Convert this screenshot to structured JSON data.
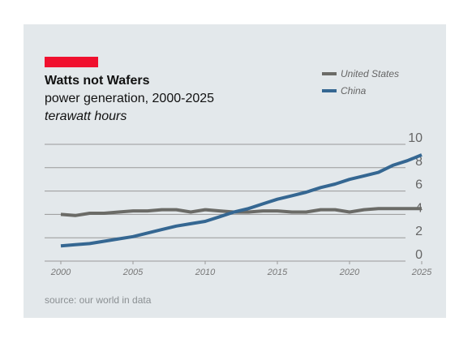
{
  "header": {
    "title": "Watts not Wafers",
    "subtitle": "power generation, 2000-2025",
    "unit": "terawatt hours"
  },
  "footer": {
    "source": "source: our world in data"
  },
  "colors": {
    "accent": "#f0102e",
    "us": "#6b6b67",
    "china": "#356792",
    "grid": "#999999"
  },
  "chart_data": {
    "type": "line",
    "title": "Watts not Wafers",
    "subtitle": "power generation, 2000-2025",
    "ylabel": "terawatt hours",
    "x": [
      2000,
      2001,
      2002,
      2003,
      2004,
      2005,
      2006,
      2007,
      2008,
      2009,
      2010,
      2011,
      2012,
      2013,
      2014,
      2015,
      2016,
      2017,
      2018,
      2019,
      2020,
      2021,
      2022,
      2023,
      2024,
      2025
    ],
    "series": [
      {
        "name": "United States",
        "values": [
          4.0,
          3.9,
          4.1,
          4.1,
          4.2,
          4.3,
          4.3,
          4.4,
          4.4,
          4.2,
          4.4,
          4.3,
          4.2,
          4.2,
          4.3,
          4.3,
          4.2,
          4.2,
          4.4,
          4.4,
          4.2,
          4.4,
          4.5,
          4.5,
          4.5,
          4.5
        ]
      },
      {
        "name": "China",
        "values": [
          1.3,
          1.4,
          1.5,
          1.7,
          1.9,
          2.1,
          2.4,
          2.7,
          3.0,
          3.2,
          3.4,
          3.8,
          4.2,
          4.5,
          4.9,
          5.3,
          5.6,
          5.9,
          6.3,
          6.6,
          7.0,
          7.3,
          7.6,
          8.2,
          8.6,
          9.1
        ]
      }
    ],
    "xticks": [
      "2000",
      "2005",
      "2010",
      "2015",
      "2020",
      "2025"
    ],
    "yticks": [
      "0",
      "2",
      "4",
      "6",
      "8",
      "10"
    ],
    "xlim": [
      2000,
      2025
    ],
    "ylim": [
      0,
      10
    ],
    "grid": true,
    "legend": "top-right"
  }
}
